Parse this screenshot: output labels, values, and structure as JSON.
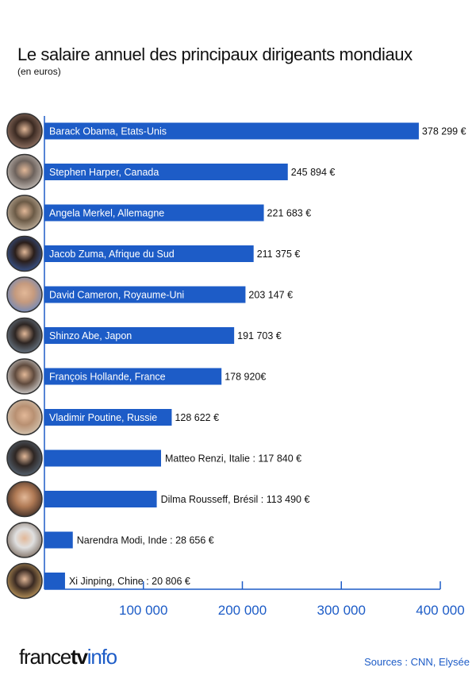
{
  "colors": {
    "bar": "#1d5cc7",
    "axis": "#1d5cc7",
    "tick_label": "#1d5cc7",
    "text_on_bar": "#ffffff",
    "value_text": "#111111"
  },
  "chart_data": {
    "type": "bar",
    "orientation": "horizontal",
    "title": "Le salaire annuel des principaux dirigeants mondiaux",
    "subtitle": "(en euros)",
    "categories": [
      "Barack Obama, Etats-Unis",
      "Stephen Harper, Canada",
      "Angela Merkel, Allemagne",
      "Jacob Zuma, Afrique du Sud",
      "David Cameron, Royaume-Uni",
      "Shinzo Abe, Japon",
      "François Hollande, France",
      "Vladimir Poutine, Russie",
      "Matteo Renzi, Italie",
      "Dilma Rousseff, Brésil",
      "Narendra Modi, Inde",
      "Xi Jinping, Chine"
    ],
    "values": [
      378299,
      245894,
      221683,
      211375,
      203147,
      191703,
      178920,
      128622,
      117840,
      113490,
      28656,
      20806
    ],
    "value_labels": [
      "378 299 €",
      "245 894 €",
      "221 683 €",
      "211 375 €",
      "203 147 €",
      "191 703 €",
      "178 920€",
      "128 622 €",
      "117 840 €",
      "113 490 €",
      "28 656 €",
      "20 806 €"
    ],
    "label_separator": " : ",
    "xlim": [
      0,
      400000
    ],
    "xticks": [
      100000,
      200000,
      300000,
      400000
    ],
    "xtick_labels": [
      "100 000",
      "200 000",
      "300 000",
      "400 000"
    ],
    "xlabel": "",
    "ylabel": "",
    "grid": false,
    "legend": "none"
  },
  "icons": [
    "portrait-photo"
  ],
  "footer": {
    "brand_part1": "france",
    "brand_part2": "tv",
    "brand_part3": "info",
    "sources": "Sources : CNN, Elysée"
  }
}
